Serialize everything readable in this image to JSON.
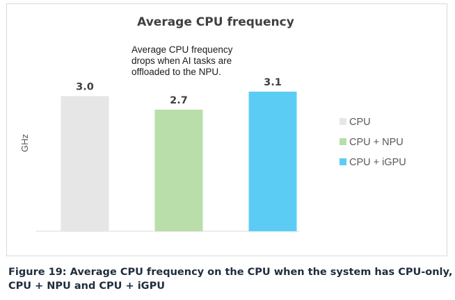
{
  "chart_data": {
    "type": "bar",
    "title": "Average CPU frequency",
    "ylabel": "GHz",
    "xlabel": "",
    "categories": [
      "CPU",
      "CPU + NPU",
      "CPU + iGPU"
    ],
    "values": [
      3.0,
      2.7,
      3.1
    ],
    "data_labels": [
      "3.0",
      "2.7",
      "3.1"
    ],
    "colors": [
      "#e6e6e6",
      "#b9deaa",
      "#5bcdf4"
    ],
    "ylim": [
      0,
      3.5
    ],
    "grid": false,
    "legend": {
      "position": "right",
      "entries": [
        "CPU",
        "CPU + NPU",
        "CPU + iGPU"
      ]
    },
    "annotation": {
      "lines": [
        "Average CPU frequency",
        "drops when AI tasks are",
        "offloaded to the NPU."
      ]
    }
  },
  "caption": {
    "lines": [
      "Figure 19: Average CPU frequency on the CPU when the system has CPU-only,",
      "CPU + NPU and CPU + iGPU"
    ]
  }
}
